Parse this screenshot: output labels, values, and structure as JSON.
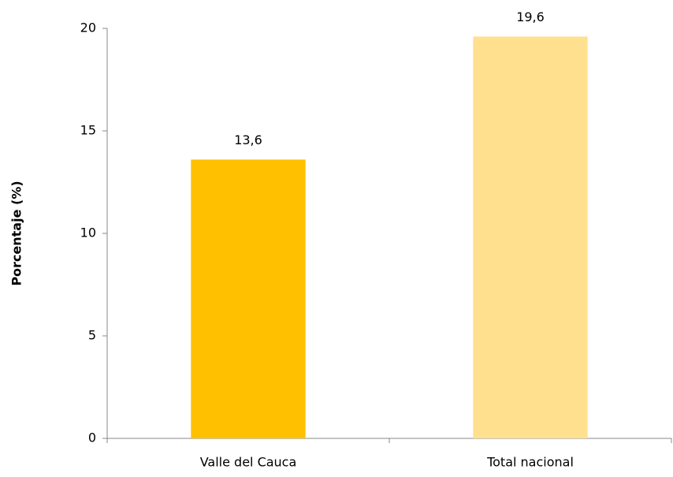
{
  "chart_data": {
    "type": "bar",
    "y_label": "Porcentaje (%)",
    "categories": [
      "Valle del Cauca",
      "Total nacional"
    ],
    "values": [
      13.6,
      19.6
    ],
    "value_labels": [
      "13,6",
      "19,6"
    ],
    "colors": [
      "#ffc000",
      "#ffe08f"
    ],
    "ylim": [
      0,
      20
    ],
    "yticks": [
      0,
      5,
      10,
      15,
      20
    ]
  }
}
